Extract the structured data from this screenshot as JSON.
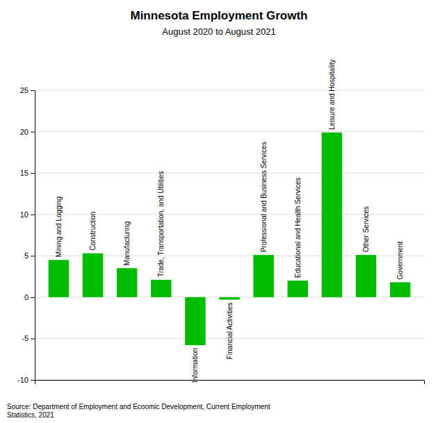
{
  "chart_data": {
    "type": "bar",
    "title": "Minnesota Employment Growth",
    "subtitle": "August 2020 to August 2021",
    "categories": [
      "Mining and Logging",
      "Construction",
      "Manufacturing",
      "Trade, Transportation, and Utilities",
      "Information",
      "Financial Activities",
      "Professional and Business Services",
      "Educational and Health Services",
      "Leisure and Hospitality",
      "Other Services",
      "Government"
    ],
    "values": [
      4.5,
      5.3,
      3.5,
      2.1,
      -5.8,
      -0.3,
      5.1,
      2.0,
      19.9,
      5.1,
      1.8
    ],
    "color": "#00bb00",
    "ylim": [
      -10,
      25
    ],
    "yticks": [
      -10,
      -5,
      0,
      5,
      10,
      15,
      20,
      25
    ],
    "grid": true,
    "tick_labels": "y",
    "source": "Source: Department of Employment and Ecoomic Development, Current Employment\nStatistics, 2021"
  }
}
